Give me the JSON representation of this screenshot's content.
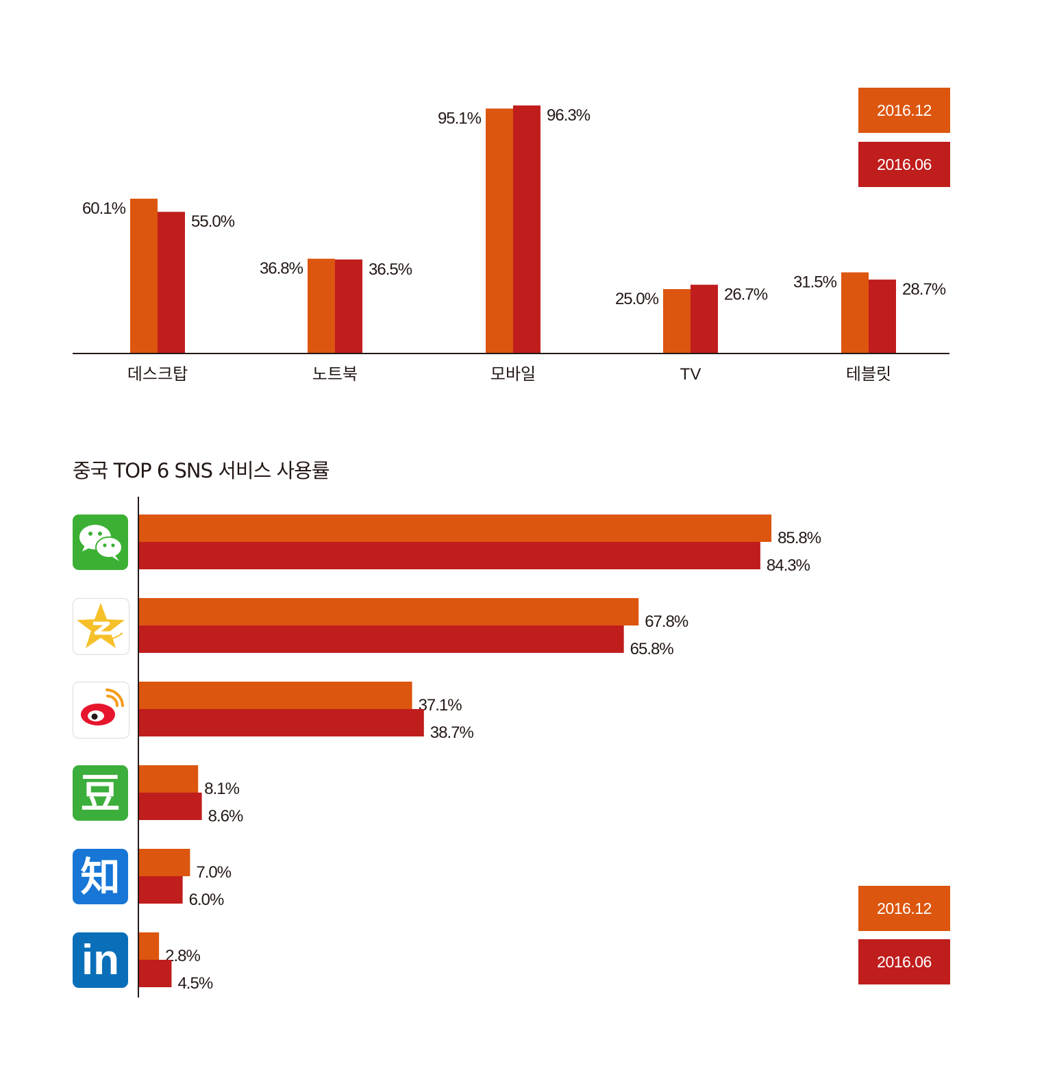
{
  "colors": {
    "dec2016": "#dc560f",
    "jun2016": "#c01d1d",
    "axis": "#231815",
    "text": "#231815"
  },
  "legend_top": [
    {
      "label": "2016.12",
      "color": "#dc560f"
    },
    {
      "label": "2016.06",
      "color": "#c01d1d"
    }
  ],
  "legend_bottom": [
    {
      "label": "2016.12",
      "color": "#dc560f"
    },
    {
      "label": "2016.06",
      "color": "#c01d1d"
    }
  ],
  "chart_data": [
    {
      "type": "bar",
      "orientation": "vertical",
      "categories": [
        "데스크탑",
        "노트북",
        "모바일",
        "TV",
        "테블릿"
      ],
      "series": [
        {
          "name": "2016.12",
          "values": [
            60.1,
            36.8,
            95.1,
            25.0,
            31.5
          ],
          "labels": [
            "60.1%",
            "36.8%",
            "95.1%",
            "25.0%",
            "31.5%"
          ]
        },
        {
          "name": "2016.06",
          "values": [
            55.0,
            36.5,
            96.3,
            26.7,
            28.7
          ],
          "labels": [
            "55.0%",
            "36.5%",
            "96.3%",
            "26.7%",
            "28.7%"
          ]
        }
      ],
      "ylim": [
        0,
        100
      ],
      "grid": false,
      "legend_position": "top-right"
    },
    {
      "type": "bar",
      "orientation": "horizontal",
      "title": "중국 TOP 6 SNS 서비스 사용률",
      "categories": [
        "wechat",
        "qzone",
        "weibo",
        "douban",
        "zhihu",
        "linkedin"
      ],
      "category_icons": [
        "wechat-icon",
        "qzone-icon",
        "weibo-icon",
        "douban-icon",
        "zhihu-icon",
        "linkedin-icon"
      ],
      "icon_glyphs": {
        "douban": "豆",
        "zhihu": "知",
        "linkedin": "in"
      },
      "series": [
        {
          "name": "2016.12",
          "values": [
            85.8,
            67.8,
            37.1,
            8.1,
            7.0,
            2.8
          ],
          "labels": [
            "85.8%",
            "67.8%",
            "37.1%",
            "8.1%",
            "7.0%",
            "2.8%"
          ]
        },
        {
          "name": "2016.06",
          "values": [
            84.3,
            65.8,
            38.7,
            8.6,
            6.0,
            4.5
          ],
          "labels": [
            "84.3%",
            "65.8%",
            "38.7%",
            "8.6%",
            "6.0%",
            "4.5%"
          ]
        }
      ],
      "xlim": [
        0,
        100
      ],
      "grid": false,
      "legend_position": "bottom-right"
    }
  ]
}
